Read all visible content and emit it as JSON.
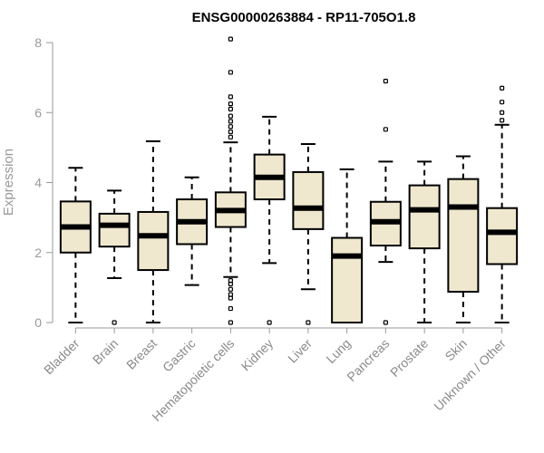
{
  "chart_data": {
    "type": "boxplot",
    "title": "ENSG00000263884 - RP11-705O1.8",
    "xlabel": "",
    "ylabel": "Expression",
    "ylim": [
      0,
      8
    ],
    "yticks": [
      0,
      2,
      4,
      6,
      8
    ],
    "box_fill": "#efe8cf",
    "categories": [
      "Bladder",
      "Brain",
      "Breast",
      "Gastric",
      "Hematopoietic cells",
      "Kidney",
      "Liver",
      "Lung",
      "Pancreas",
      "Prostate",
      "Skin",
      "Unknown / Other"
    ],
    "boxes": [
      {
        "name": "Bladder",
        "min": 0.0,
        "q1": 2.0,
        "median": 2.73,
        "q3": 3.46,
        "max": 4.42,
        "outliers": []
      },
      {
        "name": "Brain",
        "min": 1.27,
        "q1": 2.17,
        "median": 2.78,
        "q3": 3.11,
        "max": 3.77,
        "outliers": [
          0.0
        ]
      },
      {
        "name": "Breast",
        "min": 0.0,
        "q1": 1.5,
        "median": 2.48,
        "q3": 3.16,
        "max": 5.18,
        "outliers": []
      },
      {
        "name": "Gastric",
        "min": 1.07,
        "q1": 2.24,
        "median": 2.88,
        "q3": 3.52,
        "max": 4.15,
        "outliers": []
      },
      {
        "name": "Hematopoietic cells",
        "min": 1.3,
        "q1": 2.73,
        "median": 3.2,
        "q3": 3.72,
        "max": 5.15,
        "outliers": [
          0.0,
          0.4,
          0.7,
          0.8,
          0.95,
          1.1,
          1.2,
          5.3,
          5.45,
          5.6,
          5.75,
          5.9,
          6.1,
          6.25,
          6.45,
          7.15,
          8.1
        ]
      },
      {
        "name": "Kidney",
        "min": 1.7,
        "q1": 3.52,
        "median": 4.15,
        "q3": 4.8,
        "max": 5.88,
        "outliers": [
          0.0
        ]
      },
      {
        "name": "Liver",
        "min": 0.95,
        "q1": 2.67,
        "median": 3.27,
        "q3": 4.3,
        "max": 5.1,
        "outliers": [
          0.0
        ]
      },
      {
        "name": "Lung",
        "min": 0.0,
        "q1": 0.0,
        "median": 1.9,
        "q3": 2.42,
        "max": 4.38,
        "outliers": []
      },
      {
        "name": "Pancreas",
        "min": 1.73,
        "q1": 2.2,
        "median": 2.88,
        "q3": 3.45,
        "max": 4.6,
        "outliers": [
          0.0,
          5.52,
          6.9
        ]
      },
      {
        "name": "Prostate",
        "min": 0.0,
        "q1": 2.12,
        "median": 3.22,
        "q3": 3.92,
        "max": 4.6,
        "outliers": []
      },
      {
        "name": "Skin",
        "min": 0.0,
        "q1": 0.88,
        "median": 3.3,
        "q3": 4.1,
        "max": 4.75,
        "outliers": []
      },
      {
        "name": "Unknown / Other",
        "min": 0.0,
        "q1": 1.67,
        "median": 2.58,
        "q3": 3.27,
        "max": 5.65,
        "outliers": [
          5.78,
          6.0,
          6.3,
          6.7
        ]
      }
    ]
  }
}
